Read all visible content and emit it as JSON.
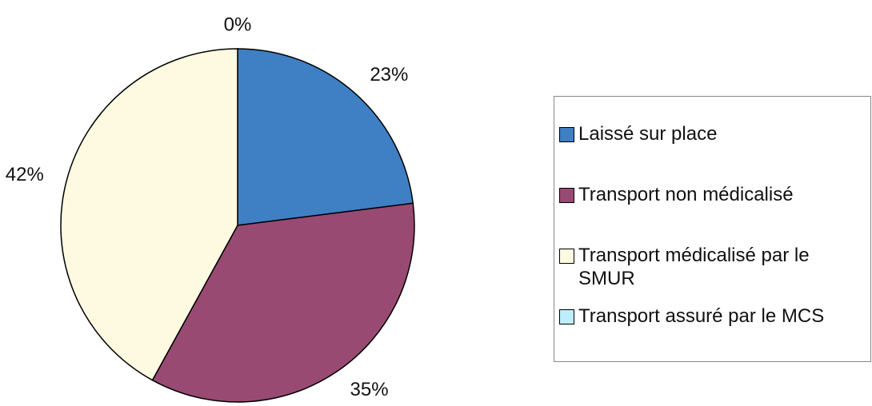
{
  "chart_data": {
    "type": "pie",
    "categories": [
      "Laissé sur place",
      "Transport non médicalisé",
      "Transport médicalisé par le SMUR",
      "Transport assuré par le MCS"
    ],
    "values": [
      23,
      35,
      42,
      0
    ],
    "value_labels": [
      "23%",
      "35%",
      "42%",
      "0%"
    ],
    "colors": [
      "#3f7fc4",
      "#994a73",
      "#fdfae1",
      "#bdeefc"
    ],
    "legend": "right"
  }
}
